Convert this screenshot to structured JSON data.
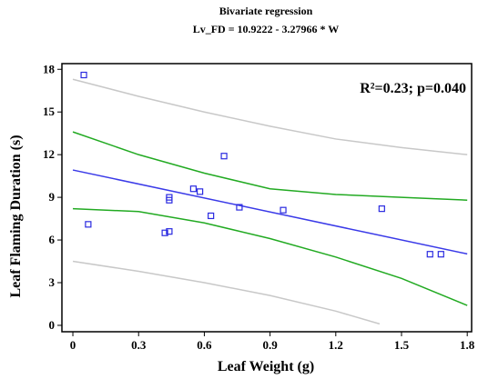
{
  "chart_data": {
    "type": "scatter",
    "title": "Bivariate regression",
    "subtitle": "Lv_FD = 10.9222 - 3.27966 * W",
    "annotation": "R²=0.23; p=0.040",
    "x_label": "Leaf Weight (g)",
    "y_label": "Leaf Flaming Duration (s)",
    "xlim": [
      -0.05,
      1.82
    ],
    "ylim": [
      -0.45,
      18.4
    ],
    "xticks": [
      0,
      0.3,
      0.6,
      0.9,
      1.2,
      1.5,
      1.8
    ],
    "yticks": [
      0,
      3,
      6,
      9,
      12,
      15,
      18
    ],
    "color": "#2a2ae0",
    "x": [
      0.05,
      0.07,
      0.42,
      0.44,
      0.44,
      0.44,
      0.55,
      0.58,
      0.63,
      0.69,
      0.76,
      0.96,
      1.41,
      1.63,
      1.68
    ],
    "values": [
      17.6,
      7.1,
      6.5,
      6.6,
      8.8,
      9.0,
      9.6,
      9.4,
      7.7,
      11.9,
      8.3,
      8.1,
      8.2,
      5.0,
      5.0
    ],
    "lines": [
      {
        "color": "#3a3ae8",
        "x": [
          0,
          1.8
        ],
        "values": [
          10.92,
          5.02
        ]
      },
      {
        "color": "#22aa22",
        "x": [
          0,
          0.3,
          0.6,
          0.9,
          1.2,
          1.5,
          1.8
        ],
        "values": [
          13.6,
          12.0,
          10.7,
          9.6,
          9.2,
          9.0,
          8.8
        ]
      },
      {
        "color": "#22aa22",
        "x": [
          0,
          0.3,
          0.6,
          0.9,
          1.2,
          1.5,
          1.8
        ],
        "values": [
          8.2,
          8.0,
          7.2,
          6.1,
          4.8,
          3.3,
          1.4
        ]
      },
      {
        "color": "#c8c8c8",
        "x": [
          0,
          0.3,
          0.6,
          0.9,
          1.2,
          1.5,
          1.8
        ],
        "values": [
          17.3,
          16.1,
          15.0,
          14.0,
          13.1,
          12.5,
          12.0
        ]
      },
      {
        "color": "#c8c8c8",
        "x": [
          0,
          0.3,
          0.6,
          0.9,
          1.2,
          1.4
        ],
        "values": [
          4.5,
          3.8,
          3.0,
          2.1,
          1.0,
          0.1
        ]
      }
    ]
  }
}
